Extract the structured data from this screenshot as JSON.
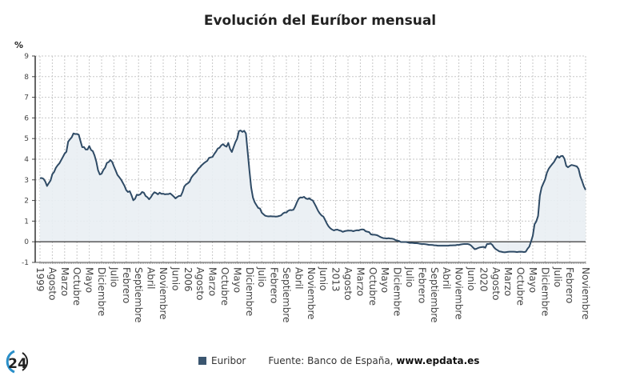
{
  "title": "Evolución del Euríbor mensual",
  "legend": {
    "series": "Euribor",
    "source_prefix": "Fuente: Banco de España, ",
    "source_site": "www.epdata.es"
  },
  "logo_text": "24",
  "colors": {
    "line": "#2f4b66",
    "fill": "#e9eef3",
    "legend": "#3b5670",
    "grid": "#c8c8c8"
  },
  "chart_data": {
    "type": "area",
    "title": "Evolución del Euríbor mensual",
    "ylabel": "%",
    "ylim": [
      -1,
      9
    ],
    "yticks": [
      -1,
      0,
      1,
      2,
      3,
      4,
      5,
      6,
      7,
      8,
      9
    ],
    "grid": true,
    "legend": "bottom",
    "x_start": "1999-01",
    "x_end": "2024-11",
    "xtick_labels": [
      "1999",
      "Agosto",
      "Marzo",
      "Octubre",
      "Mayo",
      "Diciembre",
      "Julio",
      "Febrero",
      "Septiembre",
      "Abril",
      "Noviembre",
      "Junio",
      "2006",
      "Agosto",
      "Marzo",
      "Octubre",
      "Mayo",
      "Diciembre",
      "Julio",
      "Febrero",
      "Septiembre",
      "Abril",
      "Noviembre",
      "Junio",
      "2013",
      "Agosto",
      "Marzo",
      "Octubre",
      "Mayo",
      "Diciembre",
      "Julio",
      "Febrero",
      "Septiembre",
      "Abril",
      "Noviembre",
      "Junio",
      "2020",
      "Agosto",
      "Marzo",
      "Octubre",
      "Mayo",
      "Diciembre",
      "Julio",
      "Febrero",
      "Noviembre"
    ],
    "series": [
      {
        "name": "Euribor",
        "values": [
          3.08,
          3.09,
          3.05,
          2.92,
          2.7,
          2.84,
          2.97,
          3.27,
          3.38,
          3.58,
          3.7,
          3.8,
          3.95,
          4.11,
          4.27,
          4.36,
          4.85,
          4.96,
          5.06,
          5.25,
          5.22,
          5.22,
          5.19,
          4.88,
          4.58,
          4.59,
          4.47,
          4.47,
          4.64,
          4.45,
          4.39,
          4.18,
          3.88,
          3.46,
          3.26,
          3.3,
          3.48,
          3.59,
          3.82,
          3.86,
          3.96,
          3.87,
          3.65,
          3.45,
          3.24,
          3.13,
          3.02,
          2.87,
          2.71,
          2.5,
          2.41,
          2.45,
          2.25,
          2.01,
          2.08,
          2.28,
          2.26,
          2.3,
          2.41,
          2.38,
          2.22,
          2.16,
          2.06,
          2.16,
          2.3,
          2.4,
          2.36,
          2.3,
          2.38,
          2.32,
          2.33,
          2.3,
          2.31,
          2.31,
          2.34,
          2.27,
          2.19,
          2.1,
          2.17,
          2.22,
          2.22,
          2.41,
          2.68,
          2.78,
          2.83,
          2.91,
          3.11,
          3.22,
          3.31,
          3.4,
          3.54,
          3.62,
          3.72,
          3.8,
          3.86,
          3.92,
          4.06,
          4.09,
          4.11,
          4.25,
          4.37,
          4.51,
          4.56,
          4.67,
          4.73,
          4.65,
          4.61,
          4.79,
          4.5,
          4.35,
          4.59,
          4.82,
          4.99,
          5.36,
          5.39,
          5.32,
          5.38,
          5.25,
          4.35,
          3.45,
          2.62,
          2.14,
          1.91,
          1.77,
          1.64,
          1.61,
          1.41,
          1.33,
          1.26,
          1.24,
          1.23,
          1.24,
          1.23,
          1.23,
          1.22,
          1.23,
          1.25,
          1.28,
          1.37,
          1.42,
          1.42,
          1.5,
          1.54,
          1.53,
          1.55,
          1.71,
          1.92,
          2.09,
          2.15,
          2.14,
          2.18,
          2.1,
          2.07,
          2.11,
          2.04,
          2.0,
          1.84,
          1.68,
          1.5,
          1.37,
          1.27,
          1.22,
          1.06,
          0.88,
          0.74,
          0.65,
          0.59,
          0.55,
          0.58,
          0.59,
          0.55,
          0.53,
          0.48,
          0.51,
          0.53,
          0.54,
          0.54,
          0.54,
          0.51,
          0.54,
          0.56,
          0.55,
          0.58,
          0.6,
          0.59,
          0.51,
          0.49,
          0.47,
          0.36,
          0.34,
          0.34,
          0.33,
          0.3,
          0.25,
          0.21,
          0.18,
          0.17,
          0.16,
          0.17,
          0.16,
          0.15,
          0.13,
          0.08,
          0.06,
          0.04,
          -0.01,
          -0.01,
          -0.01,
          -0.01,
          -0.03,
          -0.06,
          -0.05,
          -0.06,
          -0.07,
          -0.07,
          -0.08,
          -0.1,
          -0.11,
          -0.11,
          -0.12,
          -0.13,
          -0.15,
          -0.15,
          -0.16,
          -0.17,
          -0.18,
          -0.19,
          -0.19,
          -0.19,
          -0.19,
          -0.19,
          -0.19,
          -0.19,
          -0.18,
          -0.18,
          -0.17,
          -0.17,
          -0.15,
          -0.15,
          -0.13,
          -0.12,
          -0.11,
          -0.11,
          -0.11,
          -0.13,
          -0.19,
          -0.28,
          -0.36,
          -0.34,
          -0.3,
          -0.27,
          -0.26,
          -0.25,
          -0.29,
          -0.11,
          -0.11,
          -0.08,
          -0.15,
          -0.28,
          -0.36,
          -0.41,
          -0.47,
          -0.48,
          -0.5,
          -0.51,
          -0.5,
          -0.49,
          -0.48,
          -0.48,
          -0.48,
          -0.49,
          -0.5,
          -0.49,
          -0.48,
          -0.49,
          -0.5,
          -0.48,
          -0.34,
          -0.24,
          0.01,
          0.29,
          0.85,
          0.99,
          1.25,
          2.23,
          2.63,
          2.83,
          3.02,
          3.34,
          3.53,
          3.65,
          3.76,
          3.86,
          4.01,
          4.15,
          4.07,
          4.15,
          4.16,
          4.02,
          3.68,
          3.61,
          3.67,
          3.72,
          3.7,
          3.68,
          3.65,
          3.53,
          3.17,
          2.94,
          2.69,
          2.51
        ]
      }
    ]
  }
}
